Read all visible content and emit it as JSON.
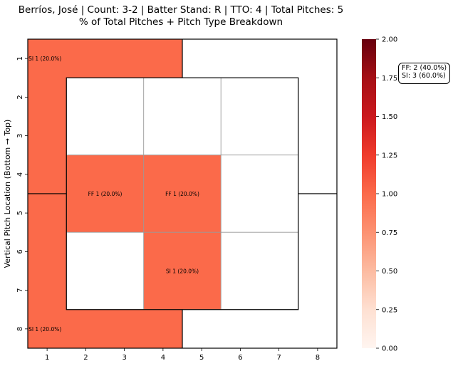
{
  "chart_data": {
    "type": "heatmap",
    "title": "Berríos, José | Count: 3-2 | Batter Stand: R | TTO: 4 | Total Pitches: 5",
    "subtitle": "% of Total Pitches + Pitch Type Breakdown",
    "ylabel": "Vertical Pitch Location (Bottom → Top)",
    "xlabel": "",
    "x_ticks": [
      "1",
      "2",
      "3",
      "4",
      "5",
      "6",
      "7",
      "8"
    ],
    "y_ticks": [
      "1",
      "2",
      "3",
      "4",
      "5",
      "6",
      "7",
      "8"
    ],
    "colormap": "Reds",
    "colorbar": {
      "min": 0.0,
      "max": 2.0,
      "ticks": [
        "0.00",
        "0.25",
        "0.50",
        "0.75",
        "1.00",
        "1.25",
        "1.50",
        "1.75",
        "2.00"
      ]
    },
    "zones": [
      {
        "zone": "outer-top-left",
        "value": 1,
        "label": "SI 1 (20.0%)"
      },
      {
        "zone": "outer-top-right",
        "value": 0,
        "label": ""
      },
      {
        "zone": "outer-bottom-left",
        "value": 1,
        "label": "SI 1 (20.0%)"
      },
      {
        "zone": "outer-bottom-right",
        "value": 0,
        "label": ""
      },
      {
        "zone": "inner-1",
        "row": 1,
        "col": 1,
        "value": 0,
        "label": ""
      },
      {
        "zone": "inner-2",
        "row": 1,
        "col": 2,
        "value": 0,
        "label": ""
      },
      {
        "zone": "inner-3",
        "row": 1,
        "col": 3,
        "value": 0,
        "label": ""
      },
      {
        "zone": "inner-4",
        "row": 2,
        "col": 1,
        "value": 1,
        "label": "FF 1 (20.0%)"
      },
      {
        "zone": "inner-5",
        "row": 2,
        "col": 2,
        "value": 1,
        "label": "FF 1 (20.0%)"
      },
      {
        "zone": "inner-6",
        "row": 2,
        "col": 3,
        "value": 0,
        "label": ""
      },
      {
        "zone": "inner-7",
        "row": 3,
        "col": 1,
        "value": 0,
        "label": ""
      },
      {
        "zone": "inner-8",
        "row": 3,
        "col": 2,
        "value": 1,
        "label": "SI 1 (20.0%)"
      },
      {
        "zone": "inner-9",
        "row": 3,
        "col": 3,
        "value": 0,
        "label": ""
      }
    ],
    "legend": [
      "FF: 2 (40.0%)",
      "SI: 3 (60.0%)"
    ],
    "legend_placement": "top-right"
  }
}
